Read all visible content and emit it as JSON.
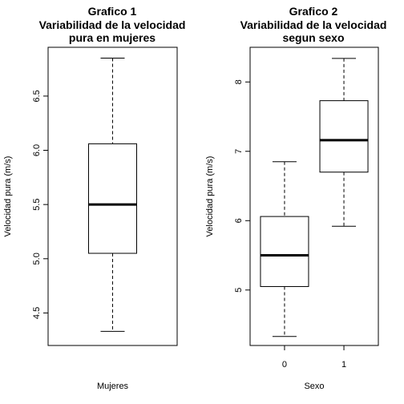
{
  "chart_data": [
    {
      "type": "boxplot",
      "title": [
        "Grafico 1",
        "Variabilidad de la velocidad",
        "pura en mujeres"
      ],
      "xlabel": "Mujeres",
      "ylabel": "Velocidad pura (m/s)",
      "ylim": [
        4.2,
        6.95
      ],
      "yticks": [
        "4.5",
        "5.0",
        "5.5",
        "6.0",
        "6.5"
      ],
      "xticks": [],
      "grid": false,
      "boxes": [
        {
          "category": "",
          "min": 4.33,
          "q1": 5.05,
          "median": 5.5,
          "q3": 6.06,
          "max": 6.85
        }
      ]
    },
    {
      "type": "boxplot",
      "title": [
        "Grafico 2",
        "Variabilidad de la velocidad",
        "segun sexo"
      ],
      "xlabel": "Sexo",
      "ylabel": "Velocidad pura (m/s)",
      "ylim": [
        4.2,
        8.5
      ],
      "yticks": [
        "5",
        "6",
        "7",
        "8"
      ],
      "xticks": [
        "0",
        "1"
      ],
      "grid": false,
      "boxes": [
        {
          "category": "0",
          "min": 4.33,
          "q1": 5.05,
          "median": 5.5,
          "q3": 6.06,
          "max": 6.85
        },
        {
          "category": "1",
          "min": 5.92,
          "q1": 6.7,
          "median": 7.16,
          "q3": 7.73,
          "max": 8.34
        }
      ]
    }
  ]
}
